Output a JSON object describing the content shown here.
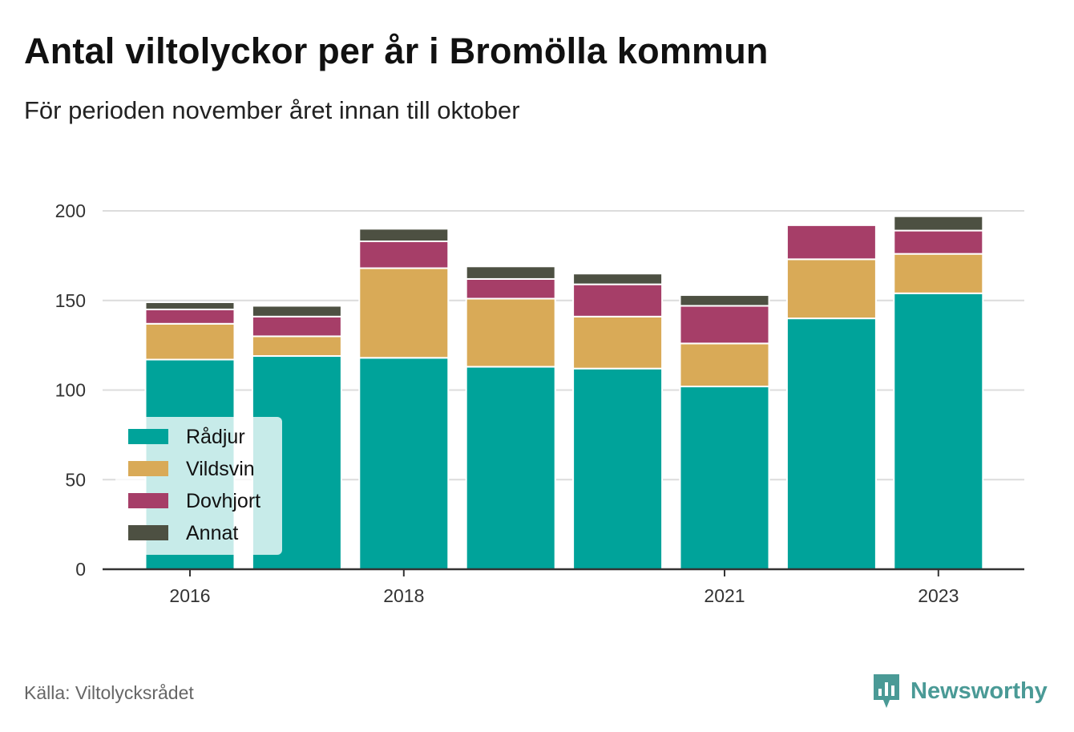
{
  "title": "Antal viltolyckor per år i Bromölla kommun",
  "subtitle": "För perioden november året innan till oktober",
  "source": "Källa: Viltolycksrådet",
  "brand": "Newsworthy",
  "colors": {
    "Rådjur": "#00a39a",
    "Vildsvin": "#d9aa57",
    "Dovhjort": "#a63e68",
    "Annat": "#4d5042",
    "grid": "#dcdcdc",
    "axis": "#333333",
    "brand": "#4a9a96"
  },
  "chart_data": {
    "type": "bar",
    "stacked": true,
    "categories": [
      "2016",
      "2017",
      "2018",
      "2019",
      "2020",
      "2021",
      "2022",
      "2023"
    ],
    "x_tick_labels": [
      "2016",
      "",
      "2018",
      "",
      "",
      "2021",
      "",
      "2023"
    ],
    "series": [
      {
        "name": "Rådjur",
        "values": [
          117,
          119,
          118,
          113,
          112,
          102,
          140,
          154
        ]
      },
      {
        "name": "Vildsvin",
        "values": [
          20,
          11,
          50,
          38,
          29,
          24,
          33,
          22
        ]
      },
      {
        "name": "Dovhjort",
        "values": [
          8,
          11,
          15,
          11,
          18,
          21,
          19,
          13
        ]
      },
      {
        "name": "Annat",
        "values": [
          4,
          6,
          7,
          7,
          6,
          6,
          0,
          8
        ]
      }
    ],
    "ylim": [
      0,
      200
    ],
    "yticks": [
      0,
      50,
      100,
      150,
      200
    ],
    "grid": true,
    "legend_position": "bottom-left, inside plot"
  }
}
